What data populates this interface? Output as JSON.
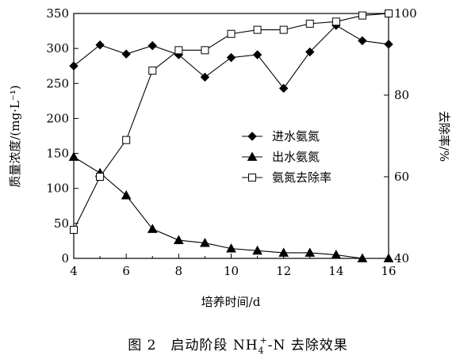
{
  "chart_data": {
    "type": "line",
    "caption": {
      "prefix": "图 2　启动阶段 NH",
      "sub": "4",
      "sup": "+",
      "suffix": "-N 去除效果"
    },
    "xlabel": "培养时间/d",
    "ylabel_left": "质量浓度/(mg·L⁻¹)",
    "ylabel_right": "去除率/%",
    "x_ticks": [
      "4",
      "6",
      "8",
      "10",
      "12",
      "14",
      "16"
    ],
    "y_left_ticks": [
      "0",
      "50",
      "100",
      "150",
      "200",
      "250",
      "300",
      "350"
    ],
    "y_right_ticks": [
      "40",
      "60",
      "80",
      "100"
    ],
    "xlim": [
      4,
      16
    ],
    "ylim_left": [
      0,
      350
    ],
    "ylim_right": [
      40,
      100
    ],
    "grid": false,
    "legend_position": "center-right",
    "x": [
      4,
      5,
      6,
      7,
      8,
      9,
      10,
      11,
      12,
      13,
      14,
      15,
      16
    ],
    "series": [
      {
        "name": "进水氨氮",
        "axis": "left",
        "marker": "diamond",
        "values": [
          275,
          305,
          292,
          304,
          291,
          259,
          287,
          291,
          243,
          295,
          333,
          311,
          306
        ]
      },
      {
        "name": "出水氨氮",
        "axis": "left",
        "marker": "triangle",
        "values": [
          145,
          122,
          90,
          42,
          26,
          22,
          14,
          11,
          8,
          8,
          5,
          0,
          0
        ]
      },
      {
        "name": "氨氮去除率",
        "axis": "right",
        "marker": "square",
        "values": [
          47,
          60,
          69,
          86,
          91,
          91,
          95,
          96,
          96,
          97.5,
          98,
          99.5,
          100
        ]
      }
    ]
  }
}
